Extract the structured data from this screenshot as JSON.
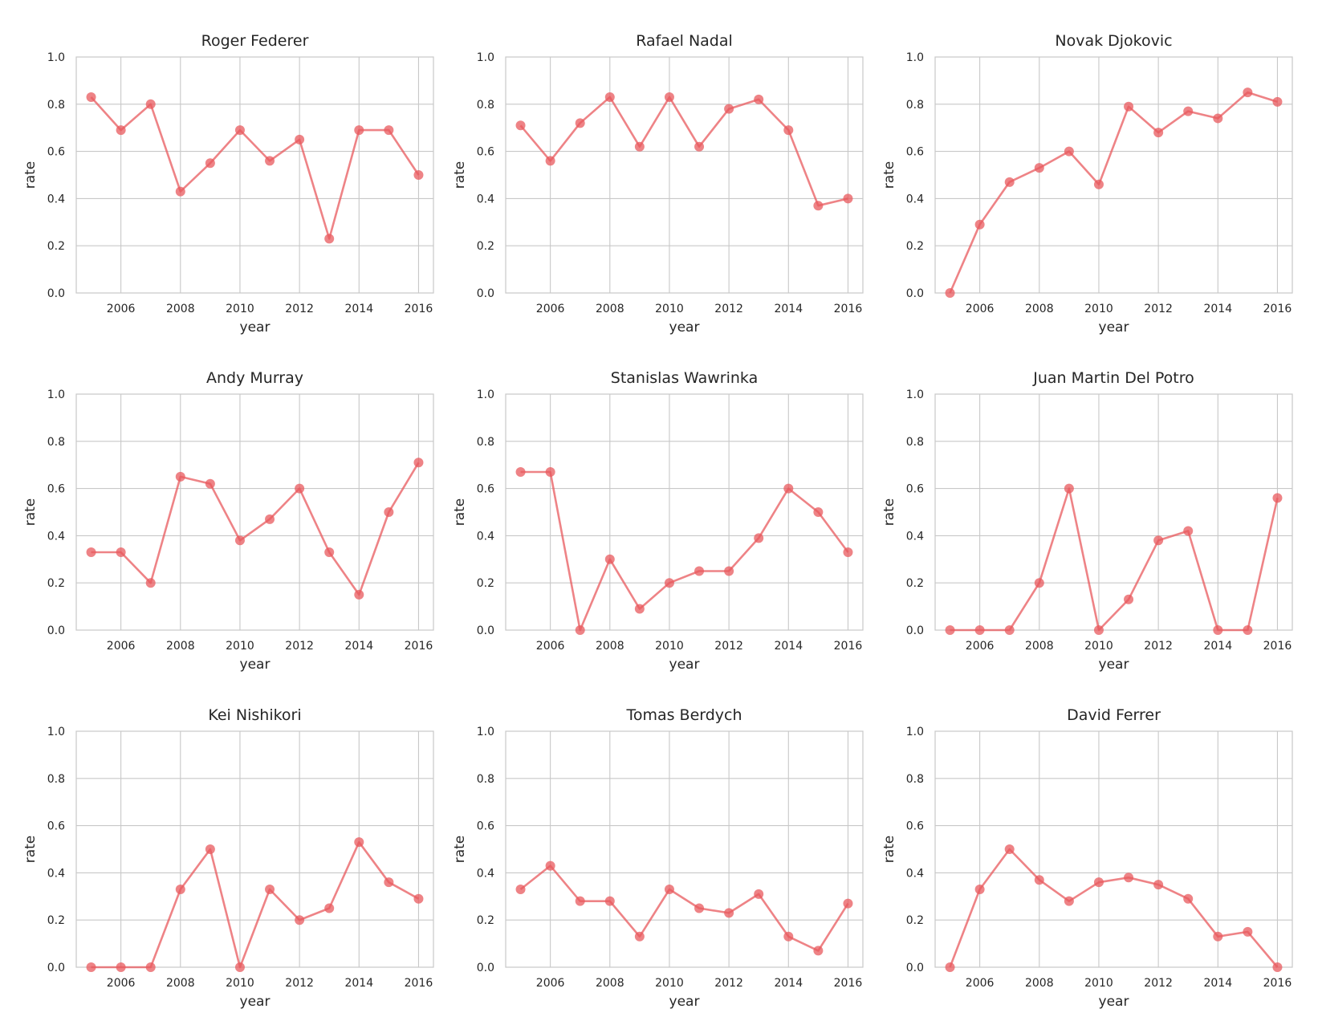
{
  "colors": {
    "series": "#e8595e",
    "grid": "#c8c8c8",
    "text": "#262626"
  },
  "chart_data": [
    {
      "type": "line",
      "title": "Roger Federer",
      "xlabel": "year",
      "ylabel": "rate",
      "x": [
        2005,
        2006,
        2007,
        2008,
        2009,
        2010,
        2011,
        2012,
        2013,
        2014,
        2015,
        2016
      ],
      "values": [
        0.83,
        0.69,
        0.8,
        0.43,
        0.55,
        0.69,
        0.56,
        0.65,
        0.23,
        0.69,
        0.69,
        0.5
      ],
      "xlim": [
        2004.5,
        2016.5
      ],
      "ylim": [
        0,
        1.0
      ],
      "xticks": [
        2006,
        2008,
        2010,
        2012,
        2014,
        2016
      ],
      "yticks": [
        0.0,
        0.2,
        0.4,
        0.6,
        0.8,
        1.0
      ],
      "grid": true
    },
    {
      "type": "line",
      "title": "Rafael Nadal",
      "xlabel": "year",
      "ylabel": "rate",
      "x": [
        2005,
        2006,
        2007,
        2008,
        2009,
        2010,
        2011,
        2012,
        2013,
        2014,
        2015,
        2016
      ],
      "values": [
        0.71,
        0.56,
        0.72,
        0.83,
        0.62,
        0.83,
        0.62,
        0.78,
        0.82,
        0.69,
        0.37,
        0.4
      ],
      "xlim": [
        2004.5,
        2016.5
      ],
      "ylim": [
        0,
        1.0
      ],
      "xticks": [
        2006,
        2008,
        2010,
        2012,
        2014,
        2016
      ],
      "yticks": [
        0.0,
        0.2,
        0.4,
        0.6,
        0.8,
        1.0
      ],
      "grid": true
    },
    {
      "type": "line",
      "title": "Novak Djokovic",
      "xlabel": "year",
      "ylabel": "rate",
      "x": [
        2005,
        2006,
        2007,
        2008,
        2009,
        2010,
        2011,
        2012,
        2013,
        2014,
        2015,
        2016
      ],
      "values": [
        0.0,
        0.29,
        0.47,
        0.53,
        0.6,
        0.46,
        0.79,
        0.68,
        0.77,
        0.74,
        0.85,
        0.81
      ],
      "xlim": [
        2004.5,
        2016.5
      ],
      "ylim": [
        0,
        1.0
      ],
      "xticks": [
        2006,
        2008,
        2010,
        2012,
        2014,
        2016
      ],
      "yticks": [
        0.0,
        0.2,
        0.4,
        0.6,
        0.8,
        1.0
      ],
      "grid": true
    },
    {
      "type": "line",
      "title": "Andy Murray",
      "xlabel": "year",
      "ylabel": "rate",
      "x": [
        2005,
        2006,
        2007,
        2008,
        2009,
        2010,
        2011,
        2012,
        2013,
        2014,
        2015,
        2016
      ],
      "values": [
        0.33,
        0.33,
        0.2,
        0.65,
        0.62,
        0.38,
        0.47,
        0.6,
        0.33,
        0.15,
        0.5,
        0.71
      ],
      "xlim": [
        2004.5,
        2016.5
      ],
      "ylim": [
        0,
        1.0
      ],
      "xticks": [
        2006,
        2008,
        2010,
        2012,
        2014,
        2016
      ],
      "yticks": [
        0.0,
        0.2,
        0.4,
        0.6,
        0.8,
        1.0
      ],
      "grid": true
    },
    {
      "type": "line",
      "title": "Stanislas Wawrinka",
      "xlabel": "year",
      "ylabel": "rate",
      "x": [
        2005,
        2006,
        2007,
        2008,
        2009,
        2010,
        2011,
        2012,
        2013,
        2014,
        2015,
        2016
      ],
      "values": [
        0.67,
        0.67,
        0.0,
        0.3,
        0.09,
        0.2,
        0.25,
        0.25,
        0.39,
        0.6,
        0.5,
        0.33
      ],
      "xlim": [
        2004.5,
        2016.5
      ],
      "ylim": [
        0,
        1.0
      ],
      "xticks": [
        2006,
        2008,
        2010,
        2012,
        2014,
        2016
      ],
      "yticks": [
        0.0,
        0.2,
        0.4,
        0.6,
        0.8,
        1.0
      ],
      "grid": true
    },
    {
      "type": "line",
      "title": "Juan Martin Del Potro",
      "xlabel": "year",
      "ylabel": "rate",
      "x": [
        2005,
        2006,
        2007,
        2008,
        2009,
        2010,
        2011,
        2012,
        2013,
        2014,
        2015,
        2016
      ],
      "values": [
        0.0,
        0.0,
        0.0,
        0.2,
        0.6,
        0.0,
        0.13,
        0.38,
        0.42,
        0.0,
        0.0,
        0.56
      ],
      "xlim": [
        2004.5,
        2016.5
      ],
      "ylim": [
        0,
        1.0
      ],
      "xticks": [
        2006,
        2008,
        2010,
        2012,
        2014,
        2016
      ],
      "yticks": [
        0.0,
        0.2,
        0.4,
        0.6,
        0.8,
        1.0
      ],
      "grid": true
    },
    {
      "type": "line",
      "title": "Kei Nishikori",
      "xlabel": "year",
      "ylabel": "rate",
      "x": [
        2005,
        2006,
        2007,
        2008,
        2009,
        2010,
        2011,
        2012,
        2013,
        2014,
        2015,
        2016
      ],
      "values": [
        0.0,
        0.0,
        0.0,
        0.33,
        0.5,
        0.0,
        0.33,
        0.2,
        0.25,
        0.53,
        0.36,
        0.29
      ],
      "xlim": [
        2004.5,
        2016.5
      ],
      "ylim": [
        0,
        1.0
      ],
      "xticks": [
        2006,
        2008,
        2010,
        2012,
        2014,
        2016
      ],
      "yticks": [
        0.0,
        0.2,
        0.4,
        0.6,
        0.8,
        1.0
      ],
      "grid": true
    },
    {
      "type": "line",
      "title": "Tomas Berdych",
      "xlabel": "year",
      "ylabel": "rate",
      "x": [
        2005,
        2006,
        2007,
        2008,
        2009,
        2010,
        2011,
        2012,
        2013,
        2014,
        2015,
        2016
      ],
      "values": [
        0.33,
        0.43,
        0.28,
        0.28,
        0.13,
        0.33,
        0.25,
        0.23,
        0.31,
        0.13,
        0.07,
        0.27
      ],
      "xlim": [
        2004.5,
        2016.5
      ],
      "ylim": [
        0,
        1.0
      ],
      "xticks": [
        2006,
        2008,
        2010,
        2012,
        2014,
        2016
      ],
      "yticks": [
        0.0,
        0.2,
        0.4,
        0.6,
        0.8,
        1.0
      ],
      "grid": true
    },
    {
      "type": "line",
      "title": "David Ferrer",
      "xlabel": "year",
      "ylabel": "rate",
      "x": [
        2005,
        2006,
        2007,
        2008,
        2009,
        2010,
        2011,
        2012,
        2013,
        2014,
        2015,
        2016
      ],
      "values": [
        0.0,
        0.33,
        0.5,
        0.37,
        0.28,
        0.36,
        0.38,
        0.35,
        0.29,
        0.13,
        0.15,
        0.0
      ],
      "xlim": [
        2004.5,
        2016.5
      ],
      "ylim": [
        0,
        1.0
      ],
      "xticks": [
        2006,
        2008,
        2010,
        2012,
        2014,
        2016
      ],
      "yticks": [
        0.0,
        0.2,
        0.4,
        0.6,
        0.8,
        1.0
      ],
      "grid": true
    }
  ]
}
